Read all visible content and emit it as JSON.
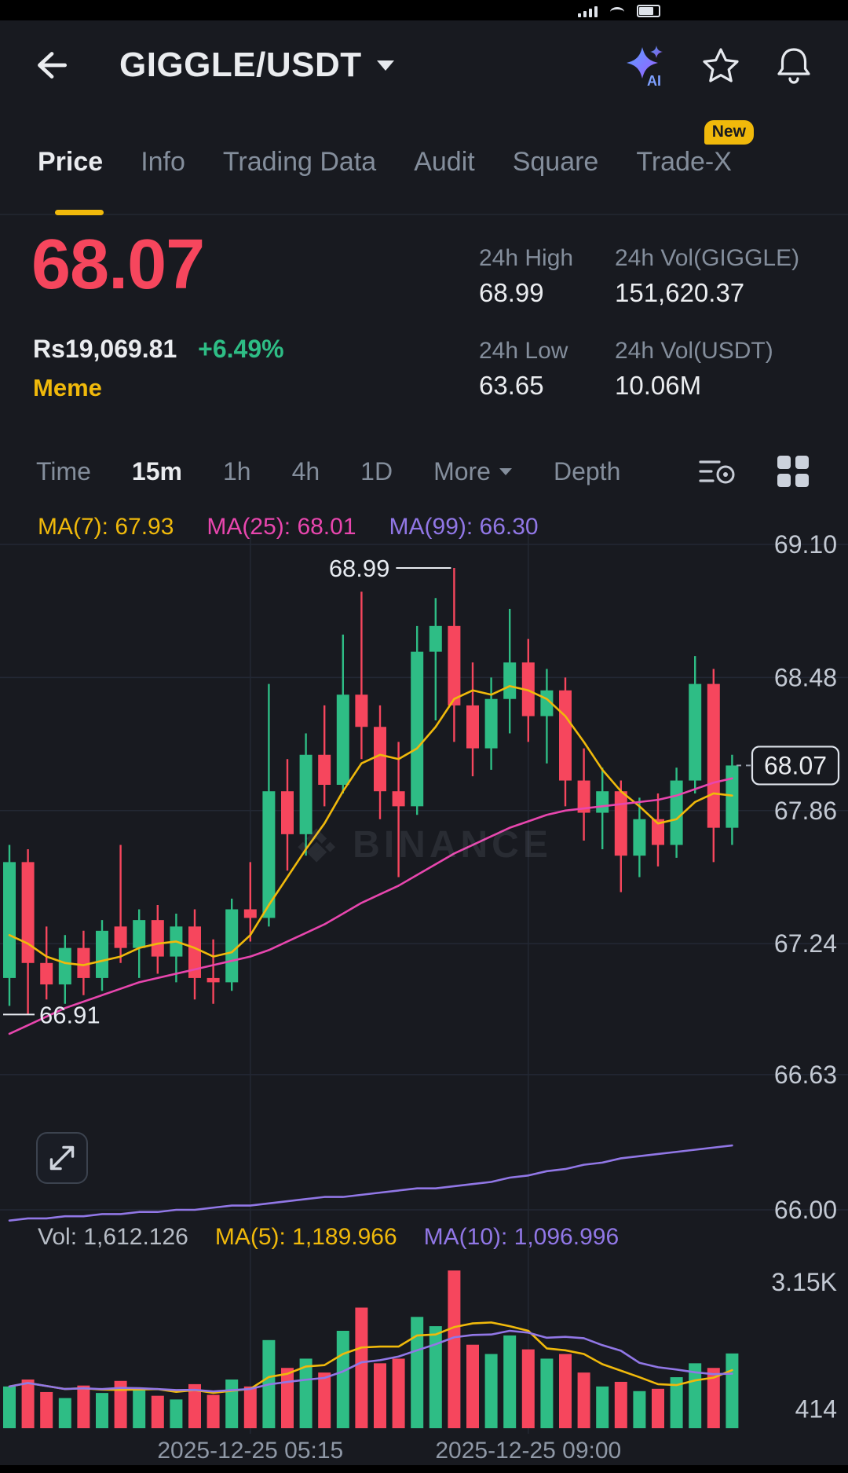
{
  "header": {
    "title": "GIGGLE/USDT",
    "ai_label": "AI"
  },
  "tabs": [
    {
      "label": "Price",
      "active": true
    },
    {
      "label": "Info"
    },
    {
      "label": "Trading Data"
    },
    {
      "label": "Audit"
    },
    {
      "label": "Square"
    },
    {
      "label": "Trade-X",
      "badge": "New"
    }
  ],
  "price_panel": {
    "price": "68.07",
    "fiat": "Rs19,069.81",
    "change": "+6.49%",
    "tag": "Meme",
    "stats": [
      {
        "label": "24h High",
        "value": "68.99"
      },
      {
        "label": "24h Low",
        "value": "63.65"
      },
      {
        "label": "24h Vol(GIGGLE)",
        "value": "151,620.37"
      },
      {
        "label": "24h Vol(USDT)",
        "value": "10.06M"
      }
    ]
  },
  "intervals": {
    "items": [
      "Time",
      "15m",
      "1h",
      "4h",
      "1D"
    ],
    "active": "15m",
    "more": "More",
    "depth": "Depth"
  },
  "ma_legend": [
    {
      "label": "MA(7): 67.93"
    },
    {
      "label": "MA(25): 68.01"
    },
    {
      "label": "MA(99): 66.30"
    }
  ],
  "vol_legend": [
    {
      "label": "Vol: 1,612.126"
    },
    {
      "label": "MA(5): 1,189.966"
    },
    {
      "label": "MA(10): 1,096.996"
    }
  ],
  "watermark": "BINANCE",
  "chart_data": {
    "type": "candlestick",
    "interval": "15m",
    "pair": "GIGGLE/USDT",
    "price_axis": {
      "ticks": [
        69.1,
        68.48,
        67.86,
        67.24,
        66.63,
        66.0
      ],
      "labels": [
        "69.10",
        "68.48",
        "67.86",
        "67.24",
        "66.63",
        "66.00"
      ]
    },
    "volume_axis": {
      "ticks": [
        {
          "value": 3150,
          "label": "3.15K"
        },
        {
          "value": 414,
          "label": "414"
        }
      ]
    },
    "time_labels": [
      {
        "index": 13,
        "label": "2025-12-25 05:15"
      },
      {
        "index": 28,
        "label": "2025-12-25 09:00"
      }
    ],
    "last_price": 68.07,
    "last_price_label": "68.07",
    "annotations": {
      "high": {
        "index": 24,
        "price": 68.99,
        "label": "68.99"
      },
      "low": {
        "index": 1,
        "price": 66.91,
        "label": "66.91"
      }
    },
    "candles": [
      [
        67.08,
        67.7,
        66.95,
        67.62,
        900
      ],
      [
        67.62,
        67.68,
        66.91,
        67.15,
        1050
      ],
      [
        67.15,
        67.32,
        66.98,
        67.05,
        780
      ],
      [
        67.05,
        67.28,
        66.96,
        67.22,
        650
      ],
      [
        67.22,
        67.3,
        67.0,
        67.08,
        920
      ],
      [
        67.08,
        67.35,
        67.02,
        67.3,
        760
      ],
      [
        67.32,
        67.7,
        67.15,
        67.22,
        1020
      ],
      [
        67.22,
        67.4,
        67.08,
        67.35,
        820
      ],
      [
        67.35,
        67.42,
        67.1,
        67.18,
        700
      ],
      [
        67.18,
        67.38,
        67.06,
        67.32,
        620
      ],
      [
        67.32,
        67.4,
        66.98,
        67.08,
        950
      ],
      [
        67.08,
        67.26,
        66.96,
        67.06,
        720
      ],
      [
        67.06,
        67.45,
        67.02,
        67.4,
        1050
      ],
      [
        67.4,
        67.62,
        67.25,
        67.36,
        900
      ],
      [
        67.36,
        68.45,
        67.32,
        67.95,
        1900
      ],
      [
        67.95,
        68.1,
        67.58,
        67.75,
        1300
      ],
      [
        67.75,
        68.22,
        67.65,
        68.12,
        1500
      ],
      [
        68.12,
        68.35,
        67.88,
        67.98,
        1200
      ],
      [
        67.98,
        68.68,
        67.94,
        68.4,
        2100
      ],
      [
        68.4,
        68.88,
        68.1,
        68.25,
        2600
      ],
      [
        68.25,
        68.35,
        67.82,
        67.95,
        1400
      ],
      [
        67.95,
        68.18,
        67.55,
        67.88,
        1500
      ],
      [
        67.88,
        68.72,
        67.84,
        68.6,
        2400
      ],
      [
        68.6,
        68.85,
        68.28,
        68.72,
        2200
      ],
      [
        68.72,
        68.99,
        68.18,
        68.35,
        3400
      ],
      [
        68.35,
        68.55,
        68.02,
        68.15,
        1800
      ],
      [
        68.15,
        68.48,
        68.05,
        68.38,
        1600
      ],
      [
        68.38,
        68.8,
        68.22,
        68.55,
        2000
      ],
      [
        68.55,
        68.66,
        68.18,
        68.3,
        1700
      ],
      [
        68.3,
        68.52,
        68.08,
        68.42,
        1500
      ],
      [
        68.42,
        68.48,
        67.88,
        68.0,
        1600
      ],
      [
        68.0,
        68.15,
        67.72,
        67.85,
        1200
      ],
      [
        67.85,
        68.06,
        67.68,
        67.95,
        900
      ],
      [
        67.95,
        68.0,
        67.48,
        67.65,
        1000
      ],
      [
        67.65,
        67.92,
        67.55,
        67.82,
        800
      ],
      [
        67.82,
        67.94,
        67.6,
        67.7,
        850
      ],
      [
        67.7,
        68.06,
        67.64,
        68.0,
        1100
      ],
      [
        68.0,
        68.58,
        67.94,
        68.45,
        1400
      ],
      [
        68.45,
        68.52,
        67.62,
        67.78,
        1300
      ],
      [
        67.78,
        68.12,
        67.7,
        68.07,
        1612
      ]
    ],
    "ma7": [
      67.28,
      67.24,
      67.18,
      67.15,
      67.14,
      67.16,
      67.18,
      67.22,
      67.24,
      67.25,
      67.22,
      67.18,
      67.2,
      67.28,
      67.42,
      67.55,
      67.68,
      67.8,
      67.95,
      68.08,
      68.12,
      68.1,
      68.15,
      68.25,
      68.38,
      68.42,
      68.4,
      68.44,
      68.42,
      68.38,
      68.3,
      68.18,
      68.05,
      67.95,
      67.88,
      67.8,
      67.82,
      67.9,
      67.94,
      67.93
    ],
    "ma25": [
      66.82,
      66.86,
      66.9,
      66.94,
      66.97,
      67.0,
      67.03,
      67.06,
      67.08,
      67.1,
      67.12,
      67.14,
      67.16,
      67.18,
      67.21,
      67.25,
      67.29,
      67.33,
      67.38,
      67.43,
      67.47,
      67.51,
      67.56,
      67.61,
      67.66,
      67.7,
      67.74,
      67.78,
      67.81,
      67.84,
      67.86,
      67.87,
      67.88,
      67.89,
      67.9,
      67.91,
      67.93,
      67.96,
      67.99,
      68.01
    ],
    "ma99": [
      65.95,
      65.96,
      65.96,
      65.97,
      65.97,
      65.98,
      65.98,
      65.99,
      65.99,
      66.0,
      66.0,
      66.01,
      66.02,
      66.02,
      66.03,
      66.04,
      66.05,
      66.06,
      66.06,
      66.07,
      66.08,
      66.09,
      66.1,
      66.1,
      66.11,
      66.12,
      66.13,
      66.15,
      66.16,
      66.18,
      66.19,
      66.21,
      66.22,
      66.24,
      66.25,
      66.26,
      66.27,
      66.28,
      66.29,
      66.3
    ],
    "colors": {
      "up": "#2ebd85",
      "down": "#f6465d",
      "grid": "#232834",
      "ma7": "#f0b90b",
      "ma25": "#e846ae",
      "ma99": "#9177e6",
      "vol_ma5": "#f0b90b",
      "vol_ma10": "#9177e6",
      "axis_text": "#c3c9d3",
      "time_text": "#8f98a6",
      "annotation_text": "#e8ecf2",
      "last_price_box": "#dde2ea",
      "bg": "#181a20"
    }
  }
}
